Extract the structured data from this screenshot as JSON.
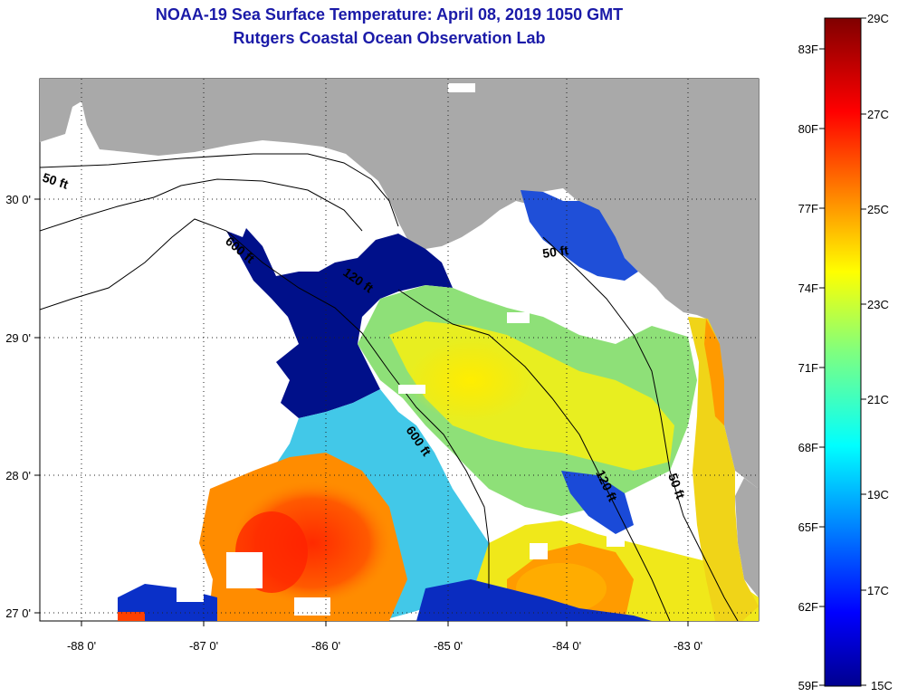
{
  "titles": {
    "line1": "NOAA-19 Sea Surface Temperature:  April 08, 2019 1050 GMT",
    "line2": "Rutgers Coastal Ocean Observation Lab"
  },
  "map": {
    "lon_ticks": [
      "-88 0'",
      "-87 0'",
      "-86 0'",
      "-85 0'",
      "-84 0'",
      "-83 0'"
    ],
    "lat_ticks": [
      "27 0'",
      "28 0'",
      "29 0'",
      "30 0'"
    ],
    "contours": {
      "west_50": "50 ft",
      "ne_50": "50 ft",
      "east_50": "50 ft",
      "nw_600": "600 ft",
      "mid_600": "600 ft",
      "mid_120": "120 ft",
      "north_120": "120 ft"
    },
    "colors": {
      "land": "#a9a9a9",
      "no_data": "#ffffff"
    }
  },
  "colorbar": {
    "celsius_labels": [
      "29C",
      "27C",
      "25C",
      "23C",
      "21C",
      "19C",
      "17C",
      "15C"
    ],
    "fahrenheit_labels": [
      "83F",
      "80F",
      "77F",
      "74F",
      "71F",
      "68F",
      "65F",
      "62F",
      "59F"
    ],
    "range_c": [
      15,
      29
    ],
    "colormap": "jet"
  }
}
